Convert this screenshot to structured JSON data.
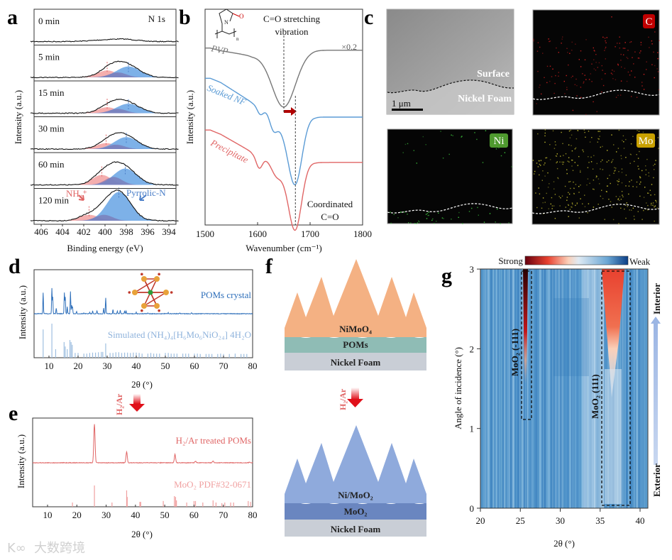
{
  "panels": {
    "a": "a",
    "b": "b",
    "c": "c",
    "d": "d",
    "e": "e",
    "f": "f",
    "g": "g"
  },
  "watermark": "大数跨境",
  "chart_data": [
    {
      "id": "a",
      "type": "line",
      "title": "N 1s",
      "xlabel": "Binding energy (eV)",
      "ylabel": "Intensity (a.u.)",
      "xlim": [
        407,
        393
      ],
      "xticks": [
        "406",
        "404",
        "402",
        "400",
        "398",
        "396",
        "394"
      ],
      "annotations": [
        "NH₄⁺",
        "Pyrrolic-N"
      ],
      "series": [
        {
          "name": "0 min",
          "nh4_center": 399.8,
          "nh4_amp": 0,
          "mid_amp": 0,
          "pyrrolic_center": 398,
          "pyrrolic_amp": 0.08
        },
        {
          "name": "5 min",
          "nh4_center": 399.8,
          "nh4_amp": 0.35,
          "mid_amp": 0.25,
          "pyrrolic_center": 397.8,
          "pyrrolic_amp": 0.55
        },
        {
          "name": "15 min",
          "nh4_center": 399.8,
          "nh4_amp": 0.3,
          "mid_amp": 0.22,
          "pyrrolic_center": 397.8,
          "pyrrolic_amp": 0.48
        },
        {
          "name": "30 min",
          "nh4_center": 399.9,
          "nh4_amp": 0.3,
          "mid_amp": 0.22,
          "pyrrolic_center": 398.0,
          "pyrrolic_amp": 0.6
        },
        {
          "name": "60 min",
          "nh4_center": 400.3,
          "nh4_amp": 0.5,
          "mid_amp": 0.4,
          "pyrrolic_center": 398.1,
          "pyrrolic_amp": 0.82
        },
        {
          "name": "120 min",
          "nh4_center": 401.5,
          "nh4_amp": 0.3,
          "mid_amp": 0.3,
          "pyrrolic_center": 398.7,
          "pyrrolic_amp": 1.45
        }
      ]
    },
    {
      "id": "b",
      "type": "line",
      "xlabel": "Wavenumber (cm⁻¹)",
      "ylabel": "Intensity (a.u.)",
      "xlim": [
        1500,
        1800
      ],
      "xticks": [
        "1500",
        "1600",
        "1700",
        "1800"
      ],
      "annotations": {
        "peak": "C=O stretching",
        "peak2": "vibration",
        "scale": "×0.2",
        "coord1": "Coordinated",
        "coord2": "C=O",
        "n": "N",
        "o": "O",
        "sub_n": "n"
      },
      "markers_cm": [
        1650,
        1672
      ],
      "series": [
        {
          "name": "PVP",
          "color": "#777777",
          "start": 0.82,
          "end": 0.86,
          "dips": [
            [
              1650,
              0.25,
              22
            ]
          ]
        },
        {
          "name": "Soaked NF",
          "color": "#5b9bd5",
          "start": 0.68,
          "end": 0.58,
          "dips": [
            [
              1605,
              0.04,
              6
            ],
            [
              1630,
              0.06,
              7
            ],
            [
              1672,
              0.29,
              13
            ],
            [
              1650,
              0.08,
              20
            ]
          ]
        },
        {
          "name": "Precipitate",
          "color": "#e06666",
          "start": 0.44,
          "end": 0.37,
          "dips": [
            [
              1603,
              0.06,
              6
            ],
            [
              1635,
              0.03,
              8
            ],
            [
              1672,
              0.28,
              12
            ],
            [
              1650,
              0.08,
              22
            ]
          ]
        }
      ]
    },
    {
      "id": "d",
      "type": "bar",
      "xlabel": "2θ (°)",
      "ylabel": "Intensity (a.u.)",
      "xlim": [
        5,
        80
      ],
      "xticks": [
        "10",
        "20",
        "30",
        "40",
        "50",
        "60",
        "70",
        "80"
      ],
      "series": [
        {
          "name": "POMs crystal",
          "color": "#2e6fba",
          "peaks": [
            [
              8,
              83
            ],
            [
              11,
              100
            ],
            [
              11.3,
              64
            ],
            [
              12.5,
              22
            ],
            [
              15.3,
              83
            ],
            [
              15.6,
              64
            ],
            [
              16.3,
              28
            ],
            [
              17.4,
              86
            ],
            [
              17.8,
              33
            ],
            [
              18.1,
              28
            ],
            [
              19.5,
              8
            ],
            [
              22,
              4
            ],
            [
              24,
              5
            ],
            [
              25,
              11
            ],
            [
              26.5,
              11
            ],
            [
              28.8,
              22
            ],
            [
              29.5,
              61
            ],
            [
              32,
              17
            ],
            [
              33.5,
              11
            ],
            [
              34.5,
              14
            ],
            [
              36,
              11
            ],
            [
              36.5,
              11
            ],
            [
              40,
              6
            ],
            [
              44,
              3
            ],
            [
              51,
              4
            ],
            [
              55,
              3
            ],
            [
              59,
              3
            ]
          ]
        },
        {
          "name": "Simulated (NH₄)₄[H₆Mo₆NiO₂₄] 4H₂O",
          "color": "#9fbfe0",
          "peaks": [
            [
              8,
              83
            ],
            [
              11,
              100
            ],
            [
              12.3,
              25
            ],
            [
              15.2,
              46
            ],
            [
              15.6,
              33
            ],
            [
              16.3,
              25
            ],
            [
              17.2,
              52
            ],
            [
              17.6,
              46
            ],
            [
              18,
              38
            ],
            [
              29.5,
              42
            ],
            [
              19,
              14
            ],
            [
              20,
              14
            ],
            [
              22,
              12
            ],
            [
              23,
              12
            ],
            [
              24,
              14
            ],
            [
              25,
              15
            ],
            [
              26,
              15
            ],
            [
              27,
              16
            ],
            [
              28,
              17
            ],
            [
              28.5,
              17
            ],
            [
              31,
              14
            ],
            [
              32,
              14
            ],
            [
              33,
              16
            ],
            [
              34,
              16
            ],
            [
              35,
              14
            ],
            [
              36,
              15
            ],
            [
              37,
              15
            ],
            [
              38,
              14
            ],
            [
              39,
              15
            ],
            [
              40,
              15
            ],
            [
              41,
              14
            ],
            [
              42,
              12
            ],
            [
              44,
              12
            ],
            [
              45,
              14
            ],
            [
              46,
              12
            ],
            [
              47,
              12
            ],
            [
              48,
              12
            ],
            [
              50,
              14
            ],
            [
              51,
              14
            ],
            [
              52,
              12
            ],
            [
              53,
              12
            ],
            [
              54,
              12
            ],
            [
              56,
              12
            ],
            [
              57,
              12
            ],
            [
              58,
              12
            ],
            [
              60,
              12
            ],
            [
              61,
              12
            ],
            [
              62,
              11
            ],
            [
              64,
              11
            ],
            [
              65,
              11
            ],
            [
              66,
              11
            ],
            [
              68,
              11
            ],
            [
              69,
              12
            ],
            [
              70,
              11
            ],
            [
              72,
              11
            ],
            [
              74,
              12
            ],
            [
              76,
              11
            ],
            [
              77,
              11
            ],
            [
              78,
              11
            ]
          ]
        }
      ]
    },
    {
      "id": "e",
      "type": "bar",
      "xlabel": "2θ (°)",
      "ylabel": "Intensity (a.u.)",
      "xlim": [
        5,
        80
      ],
      "xticks": [
        "10",
        "20",
        "30",
        "40",
        "50",
        "60",
        "70",
        "80"
      ],
      "arrow_label": "H₂/Ar",
      "series": [
        {
          "name": "H₂/Ar treated POMs",
          "color": "#e06666",
          "peaks": [
            [
              26,
              100
            ],
            [
              37,
              28
            ],
            [
              53.5,
              22
            ],
            [
              60.5,
              4
            ],
            [
              66.5,
              4
            ],
            [
              79,
              2
            ]
          ]
        },
        {
          "name": "MoO₂ PDF#32-0671",
          "color": "#f0a0a0",
          "peaks": [
            [
              18.5,
              20
            ],
            [
              26,
              100
            ],
            [
              32,
              20
            ],
            [
              37,
              77
            ],
            [
              37.2,
              46
            ],
            [
              41.5,
              23
            ],
            [
              41.8,
              23
            ],
            [
              49.5,
              27
            ],
            [
              53.3,
              50
            ],
            [
              53.7,
              46
            ],
            [
              54,
              30
            ],
            [
              57.5,
              20
            ],
            [
              60,
              27
            ],
            [
              60.5,
              27
            ],
            [
              63,
              20
            ],
            [
              66.5,
              30
            ],
            [
              67.5,
              20
            ],
            [
              69.5,
              17
            ],
            [
              70.5,
              20
            ],
            [
              72.5,
              20
            ],
            [
              73.5,
              20
            ],
            [
              78.5,
              27
            ],
            [
              79.3,
              23
            ]
          ]
        }
      ]
    },
    {
      "id": "g",
      "type": "heatmap",
      "xlabel": "2θ (°)",
      "ylabel": "Angle of incidence (°)",
      "xlim": [
        20,
        41
      ],
      "ylim": [
        0,
        3
      ],
      "xticks": [
        "20",
        "25",
        "30",
        "35",
        "40"
      ],
      "yticks": [
        "0",
        "1",
        "2",
        "3"
      ],
      "colorbar": {
        "low": "Strong",
        "high": "Weak",
        "colors": [
          "#67000d",
          "#e8412f",
          "#fbd0b9",
          "#dfeaf3",
          "#6aa6d4",
          "#0b3e86"
        ]
      },
      "annotations": [
        "MoO₂ (-111)",
        "MoO₂ (111)",
        "Interior",
        "Exterior"
      ],
      "peaks": [
        {
          "label": "MoO₂ (-111)",
          "two_theta": 25.9,
          "angle_range": [
            1.1,
            3.0
          ],
          "onset_angle": 1.5
        },
        {
          "label": "MoO₂ (111)",
          "two_theta": 36.9,
          "angle_range": [
            0.05,
            3.0
          ],
          "onset_angle": 1.7
        }
      ]
    }
  ],
  "panel_c": {
    "sem": {
      "surface": "Surface",
      "foam": "Nickel Foam",
      "scale": "1 μm"
    },
    "maps": [
      {
        "element": "C",
        "color": "#c00000"
      },
      {
        "element": "Ni",
        "color": "#4f9a2f"
      },
      {
        "element": "Mo",
        "color": "#c8a000"
      }
    ]
  },
  "panel_f": {
    "before": {
      "top": "NiMoO₄",
      "mid": "POMs",
      "base": "Nickel Foam",
      "colors": [
        "#f4b183",
        "#8fbcb5",
        "#c9ced6"
      ]
    },
    "arrow_label": "H₂/Ar",
    "after": {
      "top": "Ni/MoO₂",
      "mid": "MoO₂",
      "base": "Nickel Foam",
      "colors": [
        "#8faadc",
        "#6a86c0",
        "#c9ced6"
      ]
    }
  }
}
